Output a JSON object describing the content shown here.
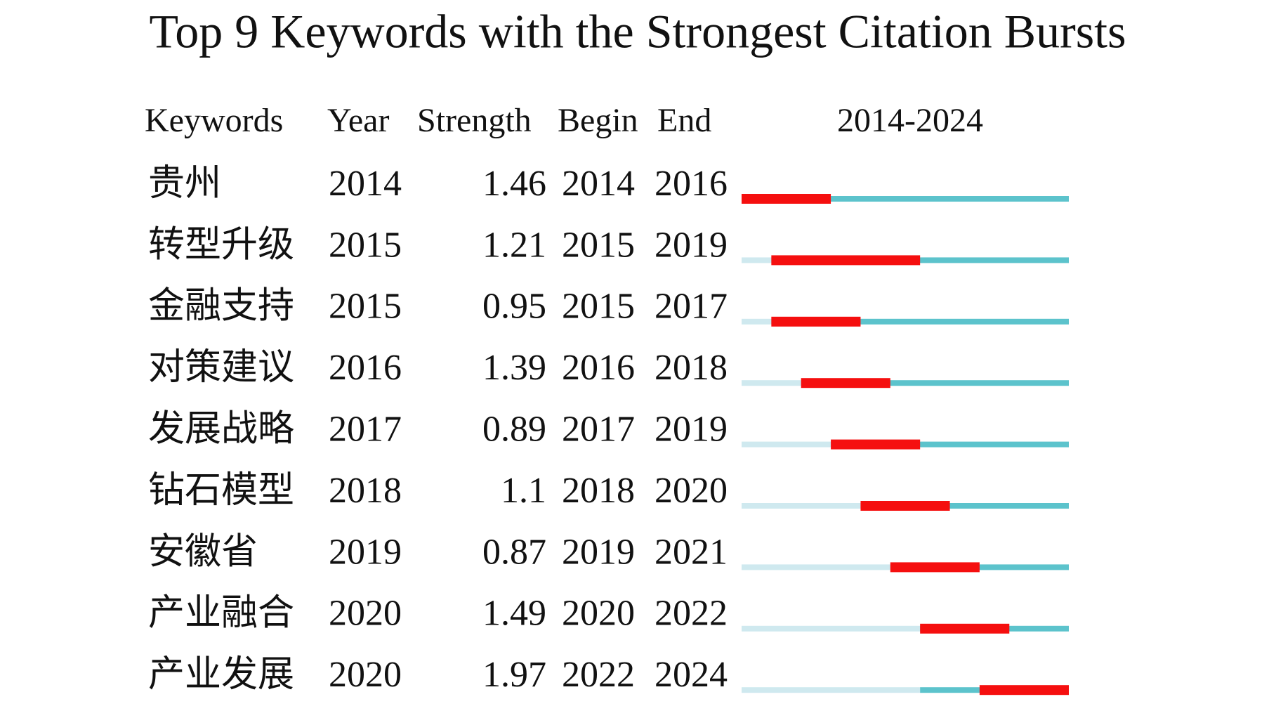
{
  "title": "Top 9 Keywords with the Strongest Citation Bursts",
  "columns": [
    "Keywords",
    "Year",
    "Strength",
    "Begin",
    "End"
  ],
  "timeline_header": "2014-2024",
  "rows": [
    {
      "keyword": "贵州",
      "year": 2014,
      "strength": 1.46,
      "begin": 2014,
      "end": 2016
    },
    {
      "keyword": "转型升级",
      "year": 2015,
      "strength": 1.21,
      "begin": 2015,
      "end": 2019
    },
    {
      "keyword": "金融支持",
      "year": 2015,
      "strength": 0.95,
      "begin": 2015,
      "end": 2017
    },
    {
      "keyword": "对策建议",
      "year": 2016,
      "strength": 1.39,
      "begin": 2016,
      "end": 2018
    },
    {
      "keyword": "发展战略",
      "year": 2017,
      "strength": 0.89,
      "begin": 2017,
      "end": 2019
    },
    {
      "keyword": "钻石模型",
      "year": 2018,
      "strength": 1.1,
      "begin": 2018,
      "end": 2020
    },
    {
      "keyword": "安徽省",
      "year": 2019,
      "strength": 0.87,
      "begin": 2019,
      "end": 2021
    },
    {
      "keyword": "产业融合",
      "year": 2020,
      "strength": 1.49,
      "begin": 2020,
      "end": 2022
    },
    {
      "keyword": "产业发展",
      "year": 2020,
      "strength": 1.97,
      "begin": 2022,
      "end": 2024
    }
  ]
}
